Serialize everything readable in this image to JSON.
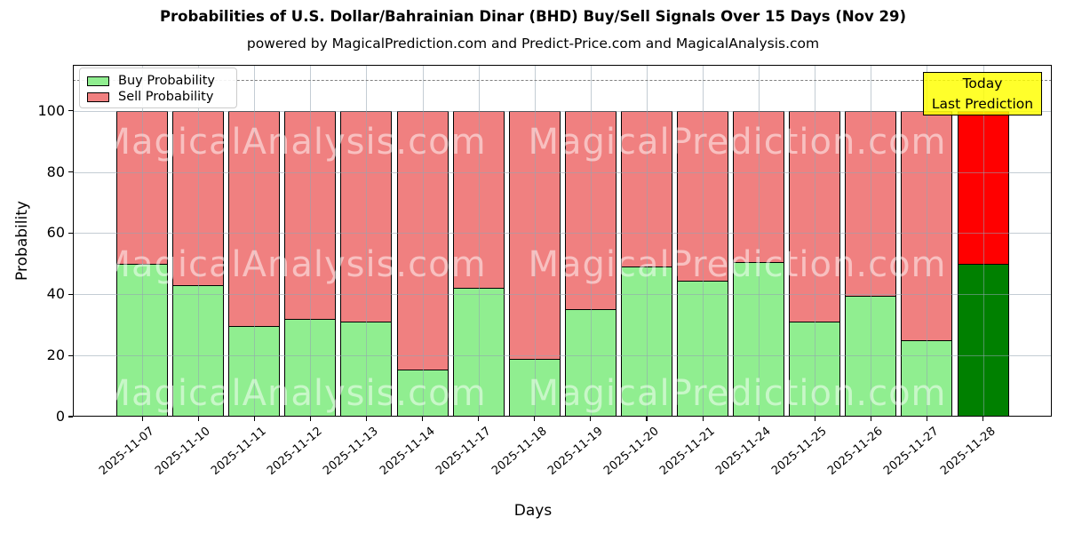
{
  "title": "Probabilities of U.S. Dollar/Bahrainian Dinar (BHD) Buy/Sell Signals Over 15 Days (Nov 29)",
  "subtitle": "powered by MagicalPrediction.com and Predict-Price.com and MagicalAnalysis.com",
  "legend": {
    "buy_label": "Buy Probability",
    "sell_label": "Sell Probability"
  },
  "axes": {
    "x_label": "Days",
    "y_label": "Probability",
    "y_ticks": [
      0,
      20,
      40,
      60,
      80,
      100
    ]
  },
  "annotation_box": {
    "line1": "Today",
    "line2": "Last Prediction"
  },
  "watermarks": {
    "left_text": "MagicalAnalysis.com",
    "right_text": "MagicalPrediction.com"
  },
  "colors": {
    "buy": "#90EE90",
    "sell": "#F08080",
    "today_buy": "#008000",
    "today_sell": "#FF0000",
    "bar_edge": "#000000",
    "annotation_bg": "#FFFF00",
    "grid": "#94a4b0",
    "dashed_line": "#7f7f7f"
  },
  "chart_data": {
    "type": "bar",
    "stacked": true,
    "title": "Probabilities of U.S. Dollar/Bahrainian Dinar (BHD) Buy/Sell Signals Over 15 Days (Nov 29)",
    "xlabel": "Days",
    "ylabel": "Probability",
    "ylim": [
      0,
      115
    ],
    "grid": true,
    "legend_position": "upper left",
    "dashed_line_y": 110,
    "categories": [
      "2025-11-07",
      "2025-11-10",
      "2025-11-11",
      "2025-11-12",
      "2025-11-13",
      "2025-11-14",
      "2025-11-17",
      "2025-11-18",
      "2025-11-19",
      "2025-11-20",
      "2025-11-21",
      "2025-11-24",
      "2025-11-25",
      "2025-11-26",
      "2025-11-27",
      "2025-11-28"
    ],
    "series": [
      {
        "name": "Buy Probability",
        "values": [
          50,
          43,
          29.5,
          32,
          31,
          15.5,
          42,
          19,
          35,
          49,
          44.5,
          50.5,
          31,
          39.5,
          25,
          50
        ]
      },
      {
        "name": "Sell Probability",
        "values": [
          50,
          57,
          70.5,
          68,
          69,
          84.5,
          58,
          81,
          65,
          51,
          55.5,
          49.5,
          69,
          60.5,
          75,
          50
        ]
      }
    ],
    "highlighted_category": "2025-11-28",
    "highlight_note": "Last bar drawn in saturated green/red and labeled 'Today / Last Prediction'"
  }
}
